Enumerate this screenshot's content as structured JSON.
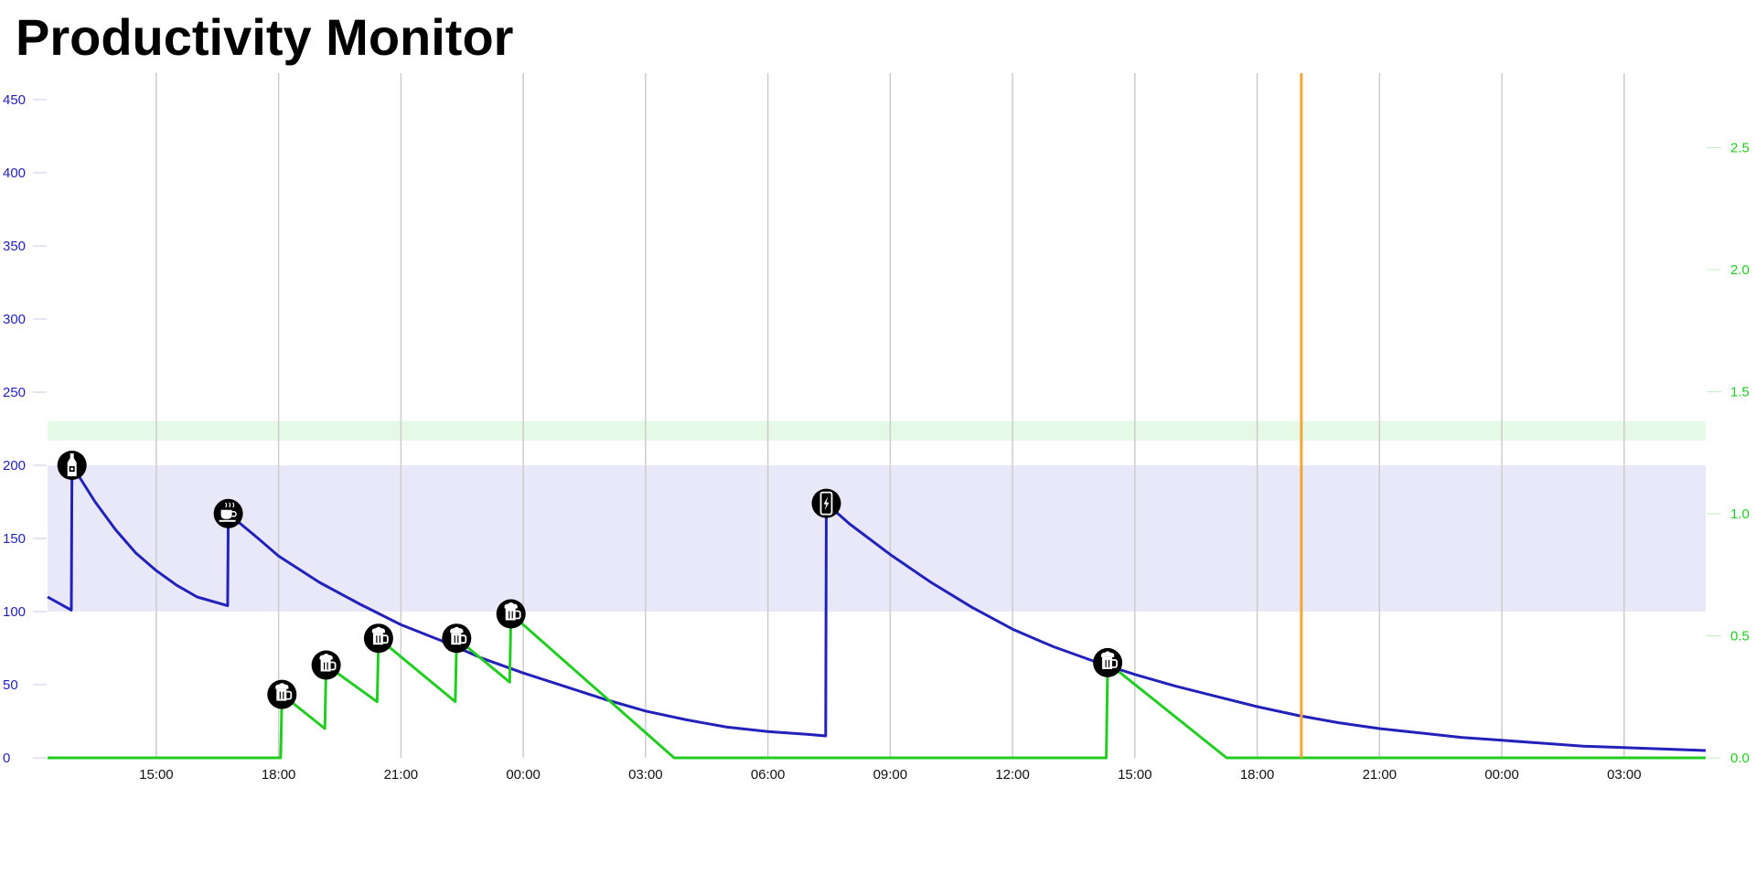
{
  "title": "Productivity Monitor",
  "colors": {
    "caffeine": "#2222bb",
    "alcohol": "#22cc22",
    "caffeine_band": "#e8e8f8",
    "alcohol_band": "#e6f8e6",
    "now_line": "#f0a830",
    "grid": "#cccccc",
    "marker_bg": "#000000",
    "marker_fg": "#ffffff"
  },
  "chart_data": {
    "type": "line",
    "x_domain": [
      "2023-01-01T12:20",
      "2023-01-03T05:00"
    ],
    "x_tick_labels": [
      {
        "t": "2023-01-01T15:00",
        "label": "15:00"
      },
      {
        "t": "2023-01-01T18:00",
        "label": "18:00"
      },
      {
        "t": "2023-01-01T21:00",
        "label": "21:00"
      },
      {
        "t": "2023-01-02T00:00",
        "label": "00:00"
      },
      {
        "t": "2023-01-02T03:00",
        "label": "03:00"
      },
      {
        "t": "2023-01-02T06:00",
        "label": "06:00"
      },
      {
        "t": "2023-01-02T09:00",
        "label": "09:00"
      },
      {
        "t": "2023-01-02T12:00",
        "label": "12:00"
      },
      {
        "t": "2023-01-02T15:00",
        "label": "15:00"
      },
      {
        "t": "2023-01-02T18:00",
        "label": "18:00"
      },
      {
        "t": "2023-01-02T21:00",
        "label": "21:00"
      },
      {
        "t": "2023-01-03T00:00",
        "label": "00:00"
      },
      {
        "t": "2023-01-03T03:00",
        "label": "03:00"
      }
    ],
    "y_left": {
      "min": 0,
      "max": 450,
      "ticks": [
        0,
        50,
        100,
        150,
        200,
        250,
        300,
        350,
        400,
        450
      ]
    },
    "y_right": {
      "min": 0.0,
      "max": 2.5,
      "ticks": [
        "0.0",
        "0.5",
        "1.0",
        "1.5",
        "2.0",
        "2.5"
      ]
    },
    "caffeine_band": [
      100,
      200
    ],
    "alcohol_band": [
      1.3,
      1.38
    ],
    "now_time": "2023-01-02T19:05",
    "series": [
      {
        "axis": "left",
        "color": "#2222bb",
        "values": [
          [
            "2023-01-01T12:20",
            110
          ],
          [
            "2023-01-01T12:55",
            101
          ],
          [
            "2023-01-01T12:56",
            200
          ],
          [
            "2023-01-01T13:30",
            175
          ],
          [
            "2023-01-01T14:00",
            156
          ],
          [
            "2023-01-01T14:30",
            140
          ],
          [
            "2023-01-01T15:00",
            128
          ],
          [
            "2023-01-01T15:30",
            118
          ],
          [
            "2023-01-01T16:00",
            110
          ],
          [
            "2023-01-01T16:45",
            104
          ],
          [
            "2023-01-01T16:46",
            167
          ],
          [
            "2023-01-01T17:30",
            150
          ],
          [
            "2023-01-01T18:00",
            138
          ],
          [
            "2023-01-01T19:00",
            120
          ],
          [
            "2023-01-01T20:00",
            105
          ],
          [
            "2023-01-01T21:00",
            91
          ],
          [
            "2023-01-01T22:00",
            80
          ],
          [
            "2023-01-01T23:00",
            68
          ],
          [
            "2023-01-02T00:00",
            58
          ],
          [
            "2023-01-02T01:00",
            49
          ],
          [
            "2023-01-02T02:00",
            40
          ],
          [
            "2023-01-02T03:00",
            32
          ],
          [
            "2023-01-02T04:00",
            26
          ],
          [
            "2023-01-02T05:00",
            21
          ],
          [
            "2023-01-02T06:00",
            18
          ],
          [
            "2023-01-02T07:00",
            16
          ],
          [
            "2023-01-02T07:25",
            15
          ],
          [
            "2023-01-02T07:26",
            174
          ],
          [
            "2023-01-02T08:00",
            160
          ],
          [
            "2023-01-02T09:00",
            139
          ],
          [
            "2023-01-02T10:00",
            120
          ],
          [
            "2023-01-02T11:00",
            103
          ],
          [
            "2023-01-02T12:00",
            88
          ],
          [
            "2023-01-02T13:00",
            76
          ],
          [
            "2023-01-02T14:00",
            66
          ],
          [
            "2023-01-02T15:00",
            57
          ],
          [
            "2023-01-02T16:00",
            49
          ],
          [
            "2023-01-02T17:00",
            42
          ],
          [
            "2023-01-02T18:00",
            35
          ],
          [
            "2023-01-02T19:00",
            29
          ],
          [
            "2023-01-02T20:00",
            24
          ],
          [
            "2023-01-02T21:00",
            20
          ],
          [
            "2023-01-02T22:00",
            17
          ],
          [
            "2023-01-02T23:00",
            14
          ],
          [
            "2023-01-03T00:00",
            12
          ],
          [
            "2023-01-03T01:00",
            10
          ],
          [
            "2023-01-03T02:00",
            8
          ],
          [
            "2023-01-03T03:00",
            7
          ],
          [
            "2023-01-03T04:00",
            6
          ],
          [
            "2023-01-03T05:00",
            5
          ]
        ]
      },
      {
        "axis": "right",
        "color": "#22cc22",
        "values": [
          [
            "2023-01-01T12:20",
            0.0
          ],
          [
            "2023-01-01T18:03",
            0.0
          ],
          [
            "2023-01-01T18:05",
            0.26
          ],
          [
            "2023-01-01T19:08",
            0.12
          ],
          [
            "2023-01-01T19:10",
            0.38
          ],
          [
            "2023-01-01T20:25",
            0.23
          ],
          [
            "2023-01-01T20:27",
            0.49
          ],
          [
            "2023-01-01T22:20",
            0.23
          ],
          [
            "2023-01-01T22:22",
            0.49
          ],
          [
            "2023-01-01T23:40",
            0.31
          ],
          [
            "2023-01-01T23:42",
            0.59
          ],
          [
            "2023-01-02T03:42",
            0.0
          ],
          [
            "2023-01-02T14:18",
            0.0
          ],
          [
            "2023-01-02T14:20",
            0.39
          ],
          [
            "2023-01-02T17:15",
            0.0
          ],
          [
            "2023-01-03T05:00",
            0.0
          ]
        ]
      }
    ],
    "markers": [
      {
        "t": "2023-01-01T12:56",
        "v": 200,
        "axis": "left",
        "icon": "bottle-icon"
      },
      {
        "t": "2023-01-01T16:46",
        "v": 167,
        "axis": "left",
        "icon": "coffee-cup-icon"
      },
      {
        "t": "2023-01-02T07:26",
        "v": 174,
        "axis": "left",
        "icon": "energy-drink-icon"
      },
      {
        "t": "2023-01-01T18:05",
        "v": 0.26,
        "axis": "right",
        "icon": "beer-mug-icon"
      },
      {
        "t": "2023-01-01T19:10",
        "v": 0.38,
        "axis": "right",
        "icon": "beer-mug-icon"
      },
      {
        "t": "2023-01-01T20:27",
        "v": 0.49,
        "axis": "right",
        "icon": "beer-mug-icon"
      },
      {
        "t": "2023-01-01T22:22",
        "v": 0.49,
        "axis": "right",
        "icon": "beer-mug-icon"
      },
      {
        "t": "2023-01-01T23:42",
        "v": 0.59,
        "axis": "right",
        "icon": "beer-mug-icon"
      },
      {
        "t": "2023-01-02T14:20",
        "v": 0.39,
        "axis": "right",
        "icon": "beer-mug-icon"
      }
    ]
  }
}
